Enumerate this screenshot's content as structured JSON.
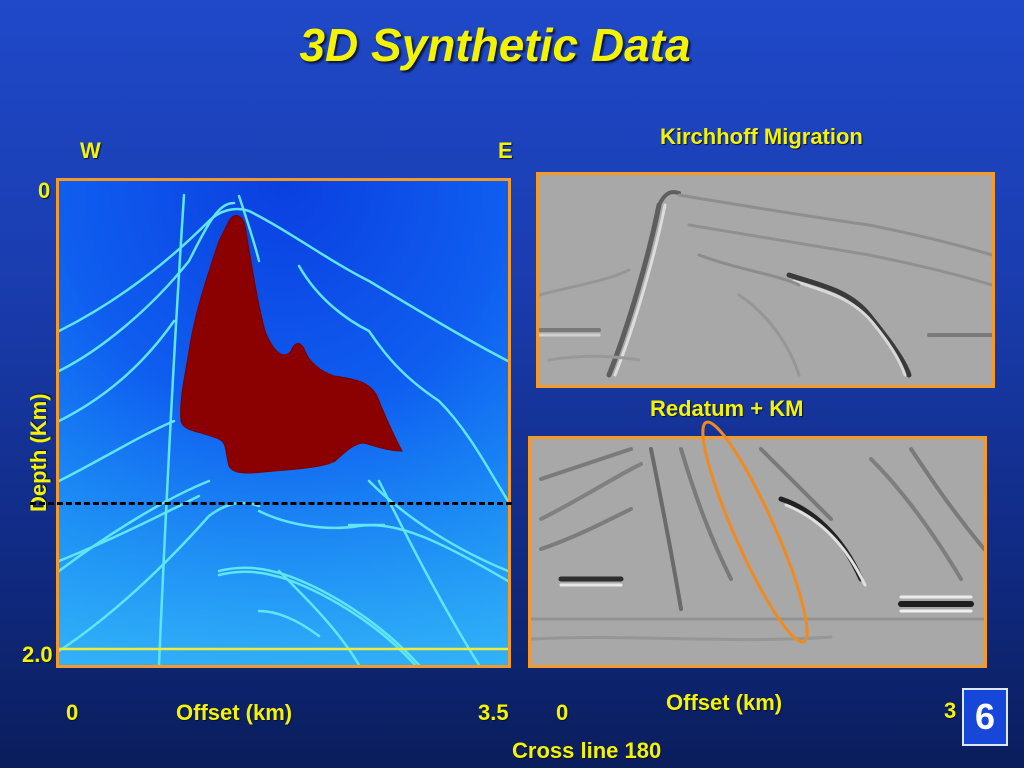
{
  "slide": {
    "title": "3D Synthetic Data",
    "page_number": "6",
    "colors": {
      "accent_text": "#f4f400",
      "panel_border": "#f39a2a",
      "salt_body": "#8b0000",
      "background": "#1a3db0"
    }
  },
  "left_panel": {
    "west_label": "W",
    "east_label": "E",
    "depth_top": "0",
    "depth_bottom": "2.0",
    "y_axis_label": "Depth (Km)",
    "x_min": "0",
    "x_label": "Offset (km)",
    "x_max": "3.5"
  },
  "right_top": {
    "title": "Kirchhoff Migration"
  },
  "right_bottom": {
    "title": "Redatum + KM",
    "x_min": "0",
    "x_label": "Offset (km)",
    "x_max": "3"
  },
  "footer": {
    "caption": "Cross line 180"
  }
}
